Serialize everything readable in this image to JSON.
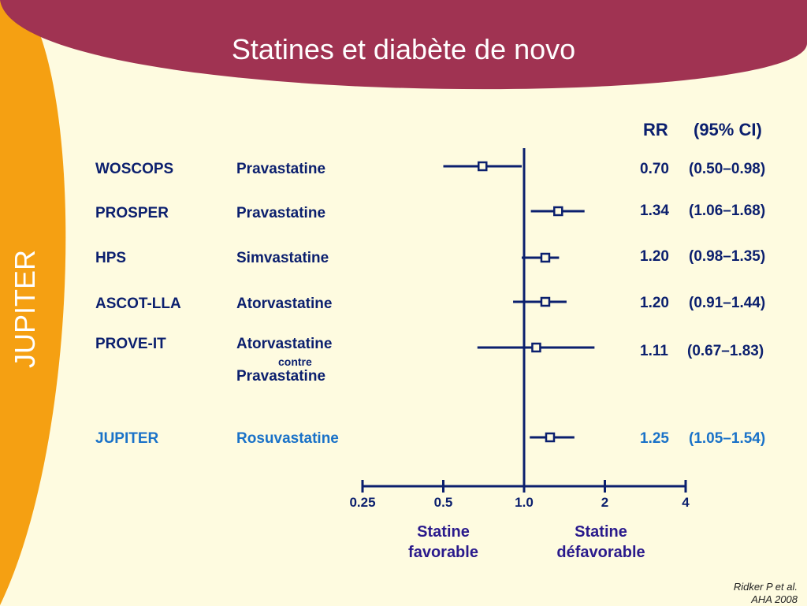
{
  "slide": {
    "title": "Statines et diabète de novo",
    "side_label": "JUPITER",
    "colors": {
      "banner": "#a03352",
      "side_band": "#f5a012",
      "background": "#fefbe0",
      "text": "#0b1f6e",
      "highlight": "#1a72c8"
    }
  },
  "headers": {
    "rr": "RR",
    "ci": "(95% CI)"
  },
  "rows": [
    {
      "trial": "WOSCOPS",
      "drug": "Pravastatine",
      "rr_text": "0.70",
      "ci_text": "(0.50–0.98)"
    },
    {
      "trial": "PROSPER",
      "drug": "Pravastatine",
      "rr_text": "1.34",
      "ci_text": "(1.06–1.68)"
    },
    {
      "trial": "HPS",
      "drug": "Simvastatine",
      "rr_text": "1.20",
      "ci_text": "(0.98–1.35)"
    },
    {
      "trial": "ASCOT-LLA",
      "drug": "Atorvastatine",
      "rr_text": "1.20",
      "ci_text": "(0.91–1.44)"
    },
    {
      "trial": "PROVE-IT",
      "drug": "Atorvastatine",
      "drug_mid": "contre",
      "drug_line2": "Pravastatine",
      "rr_text": "1.11",
      "ci_text": "(0.67–1.83)"
    },
    {
      "trial": "JUPITER",
      "drug": "Rosuvastatine",
      "rr_text": "1.25",
      "ci_text": "(1.05–1.54)"
    }
  ],
  "chart_data": {
    "type": "scatter",
    "x_scale": "log",
    "xlim": [
      0.25,
      4
    ],
    "reference_line": 1.0,
    "ticks": [
      {
        "value": 0.25,
        "label": "0.25"
      },
      {
        "value": 0.5,
        "label": "0.5"
      },
      {
        "value": 1.0,
        "label": "1.0"
      },
      {
        "value": 2,
        "label": "2"
      },
      {
        "value": 4,
        "label": "4"
      }
    ],
    "points": [
      {
        "trial": "WOSCOPS",
        "rr": 0.7,
        "lo": 0.5,
        "hi": 0.98
      },
      {
        "trial": "PROSPER",
        "rr": 1.34,
        "lo": 1.06,
        "hi": 1.68
      },
      {
        "trial": "HPS",
        "rr": 1.2,
        "lo": 0.98,
        "hi": 1.35
      },
      {
        "trial": "ASCOT-LLA",
        "rr": 1.2,
        "lo": 0.91,
        "hi": 1.44
      },
      {
        "trial": "PROVE-IT",
        "rr": 1.11,
        "lo": 0.67,
        "hi": 1.83
      },
      {
        "trial": "JUPITER",
        "rr": 1.25,
        "lo": 1.05,
        "hi": 1.54
      }
    ],
    "zone_labels": {
      "left": "Statine\nfavorable",
      "right": "Statine\ndéfavorable"
    }
  },
  "citation": {
    "line1": "Ridker  P  et al.",
    "line2": "AHA 2008"
  }
}
